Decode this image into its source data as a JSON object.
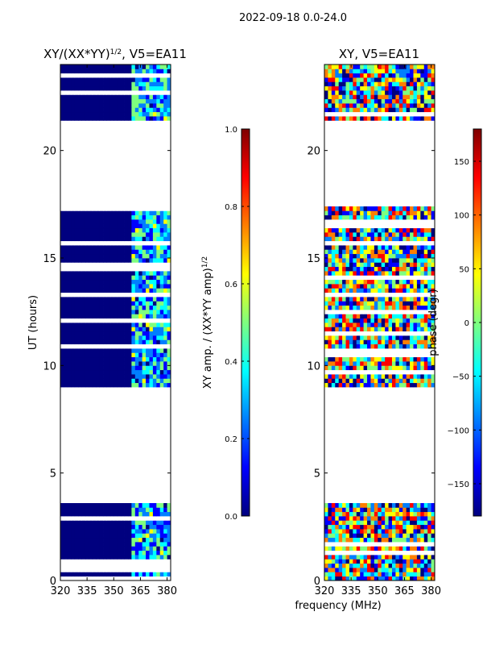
{
  "suptitle": "2022-09-18 0.0-24.0",
  "colors": {
    "frame": "#000000",
    "background": "#ffffff",
    "jet": [
      "#00007f",
      "#0000ff",
      "#007fff",
      "#00ffff",
      "#7fff7f",
      "#ffff00",
      "#ff7f00",
      "#ff0000",
      "#7f0000"
    ]
  },
  "chart_data": [
    {
      "type": "heatmap",
      "title": "XY/(XX*YY)",
      "title_exponent": "1/2",
      "title_suffix": ", V5=EA11",
      "xlabel": "",
      "ylabel": "UT (hours)",
      "xlim": [
        320,
        382
      ],
      "ylim": [
        0,
        24
      ],
      "xticks": [
        320,
        335,
        350,
        365,
        380
      ],
      "yticks": [
        0,
        5,
        10,
        15,
        20
      ],
      "colorbar": {
        "label": "XY amp. / (XX*YY amp)",
        "label_exponent": "1/2",
        "range": [
          0.0,
          1.0
        ],
        "ticks": [
          "0.0",
          "0.2",
          "0.4",
          "0.6",
          "0.8",
          "1.0"
        ]
      },
      "data_bands_hours": [
        [
          0.0,
          3.6
        ],
        [
          9.0,
          17.4
        ],
        [
          21.4,
          24.0
        ]
      ],
      "dominant_value": 0.05,
      "bright_frequency_range_mhz": [
        360,
        382
      ]
    },
    {
      "type": "heatmap",
      "title": "XY, V5=EA11",
      "xlabel": "frequency (MHz)",
      "ylabel": "",
      "xlim": [
        320,
        382
      ],
      "ylim": [
        0,
        24
      ],
      "xticks": [
        320,
        335,
        350,
        365,
        380
      ],
      "yticks": [
        0,
        5,
        10,
        15,
        20
      ],
      "colorbar": {
        "label": "phase (degr)",
        "range": [
          -180,
          180
        ],
        "ticks": [
          "-150",
          "-100",
          "-50",
          "0",
          "50",
          "100",
          "150"
        ]
      },
      "data_bands_hours": [
        [
          0.0,
          3.6
        ],
        [
          9.0,
          17.4
        ],
        [
          21.4,
          24.0
        ]
      ]
    }
  ]
}
